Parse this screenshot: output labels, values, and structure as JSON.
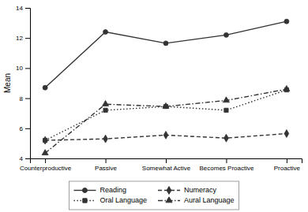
{
  "chart_data": {
    "type": "line",
    "categories": [
      "Counterproductive",
      "Passive",
      "Somewhat Active",
      "Becomes Proactive",
      "Proactive"
    ],
    "series": [
      {
        "name": "Reading",
        "color": "#333333",
        "marker": "circle",
        "line_style": "solid",
        "values": [
          8.7,
          12.4,
          11.65,
          12.2,
          13.1
        ]
      },
      {
        "name": "Numeracy",
        "color": "#333333",
        "marker": "diamond",
        "line_style": "dashed",
        "values": [
          5.2,
          5.3,
          5.55,
          5.35,
          5.65
        ]
      },
      {
        "name": "Oral Language",
        "color": "#333333",
        "marker": "square",
        "line_style": "dotted",
        "values": [
          5.2,
          7.2,
          7.45,
          7.2,
          8.55
        ]
      },
      {
        "name": "Aural Language",
        "color": "#333333",
        "marker": "triangle",
        "line_style": "dashdot",
        "values": [
          4.35,
          7.6,
          7.45,
          7.85,
          8.6
        ]
      }
    ],
    "ylabel": "Mean",
    "ylim": [
      4,
      14
    ],
    "yticks": [
      4,
      6,
      8,
      10,
      12,
      14
    ],
    "grid": false,
    "legend": "bottom"
  }
}
